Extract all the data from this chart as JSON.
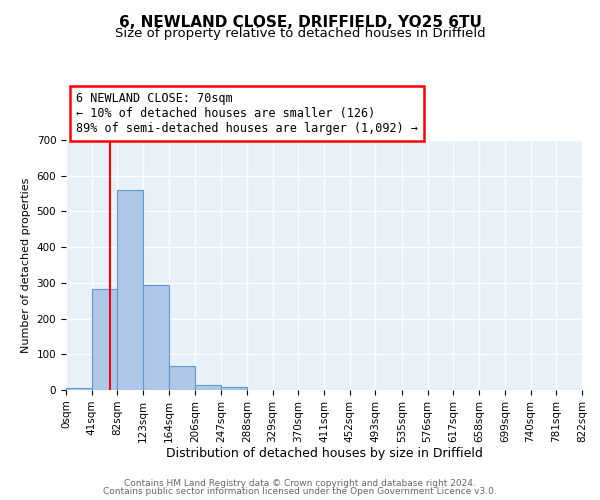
{
  "title": "6, NEWLAND CLOSE, DRIFFIELD, YO25 6TU",
  "subtitle": "Size of property relative to detached houses in Driffield",
  "xlabel": "Distribution of detached houses by size in Driffield",
  "ylabel": "Number of detached properties",
  "bin_edges": [
    0,
    41,
    82,
    123,
    164,
    206,
    247,
    288,
    329,
    370,
    411,
    452,
    493,
    535,
    576,
    617,
    658,
    699,
    740,
    781,
    822
  ],
  "bin_counts": [
    5,
    283,
    560,
    293,
    68,
    14,
    8,
    0,
    0,
    0,
    0,
    0,
    0,
    0,
    0,
    0,
    0,
    0,
    0,
    0
  ],
  "bar_color": "#aec6e8",
  "bar_edge_color": "#5b9bd5",
  "bar_linewidth": 0.8,
  "vline_x": 70,
  "vline_color": "red",
  "vline_linewidth": 1.5,
  "annotation_text": "6 NEWLAND CLOSE: 70sqm\n← 10% of detached houses are smaller (126)\n89% of semi-detached houses are larger (1,092) →",
  "annotation_box_color": "white",
  "annotation_box_edge_color": "red",
  "annotation_fontsize": 8.5,
  "ylim": [
    0,
    700
  ],
  "yticks": [
    0,
    100,
    200,
    300,
    400,
    500,
    600,
    700
  ],
  "tick_labels": [
    "0sqm",
    "41sqm",
    "82sqm",
    "123sqm",
    "164sqm",
    "206sqm",
    "247sqm",
    "288sqm",
    "329sqm",
    "370sqm",
    "411sqm",
    "452sqm",
    "493sqm",
    "535sqm",
    "576sqm",
    "617sqm",
    "658sqm",
    "699sqm",
    "740sqm",
    "781sqm",
    "822sqm"
  ],
  "background_color": "#e8f0f8",
  "grid_color": "white",
  "footer_line1": "Contains HM Land Registry data © Crown copyright and database right 2024.",
  "footer_line2": "Contains public sector information licensed under the Open Government Licence v3.0.",
  "title_fontsize": 11,
  "subtitle_fontsize": 9.5,
  "xlabel_fontsize": 9,
  "ylabel_fontsize": 8,
  "tick_fontsize": 7.5,
  "footer_fontsize": 6.5
}
